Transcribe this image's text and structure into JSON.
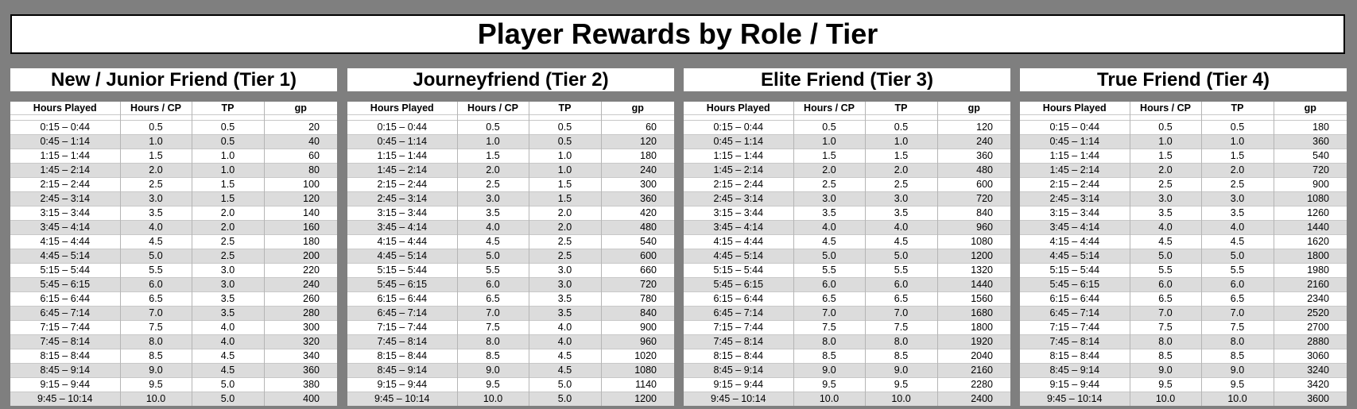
{
  "title": "Player Rewards by Role / Tier",
  "columns": [
    "Hours Played",
    "Hours / CP",
    "TP",
    "gp"
  ],
  "hours_played": [
    "0:15 – 0:44",
    "0:45 – 1:14",
    "1:15 – 1:44",
    "1:45 – 2:14",
    "2:15 – 2:44",
    "2:45 – 3:14",
    "3:15 – 3:44",
    "3:45 – 4:14",
    "4:15 – 4:44",
    "4:45 – 5:14",
    "5:15 – 5:44",
    "5:45 – 6:15",
    "6:15 – 6:44",
    "6:45 – 7:14",
    "7:15 – 7:44",
    "7:45 – 8:14",
    "8:15 – 8:44",
    "8:45 – 9:14",
    "9:15 – 9:44",
    "9:45 – 10:14"
  ],
  "hours_cp": [
    "0.5",
    "1.0",
    "1.5",
    "2.0",
    "2.5",
    "3.0",
    "3.5",
    "4.0",
    "4.5",
    "5.0",
    "5.5",
    "6.0",
    "6.5",
    "7.0",
    "7.5",
    "8.0",
    "8.5",
    "9.0",
    "9.5",
    "10.0"
  ],
  "tiers": [
    {
      "name": "New / Junior Friend (Tier 1)",
      "tp": [
        "0.5",
        "0.5",
        "1.0",
        "1.0",
        "1.5",
        "1.5",
        "2.0",
        "2.0",
        "2.5",
        "2.5",
        "3.0",
        "3.0",
        "3.5",
        "3.5",
        "4.0",
        "4.0",
        "4.5",
        "4.5",
        "5.0",
        "5.0"
      ],
      "gp": [
        "20",
        "40",
        "60",
        "80",
        "100",
        "120",
        "140",
        "160",
        "180",
        "200",
        "220",
        "240",
        "260",
        "280",
        "300",
        "320",
        "340",
        "360",
        "380",
        "400"
      ]
    },
    {
      "name": "Journeyfriend (Tier 2)",
      "tp": [
        "0.5",
        "0.5",
        "1.0",
        "1.0",
        "1.5",
        "1.5",
        "2.0",
        "2.0",
        "2.5",
        "2.5",
        "3.0",
        "3.0",
        "3.5",
        "3.5",
        "4.0",
        "4.0",
        "4.5",
        "4.5",
        "5.0",
        "5.0"
      ],
      "gp": [
        "60",
        "120",
        "180",
        "240",
        "300",
        "360",
        "420",
        "480",
        "540",
        "600",
        "660",
        "720",
        "780",
        "840",
        "900",
        "960",
        "1020",
        "1080",
        "1140",
        "1200"
      ]
    },
    {
      "name": "Elite Friend (Tier 3)",
      "tp": [
        "0.5",
        "1.0",
        "1.5",
        "2.0",
        "2.5",
        "3.0",
        "3.5",
        "4.0",
        "4.5",
        "5.0",
        "5.5",
        "6.0",
        "6.5",
        "7.0",
        "7.5",
        "8.0",
        "8.5",
        "9.0",
        "9.5",
        "10.0"
      ],
      "gp": [
        "120",
        "240",
        "360",
        "480",
        "600",
        "720",
        "840",
        "960",
        "1080",
        "1200",
        "1320",
        "1440",
        "1560",
        "1680",
        "1800",
        "1920",
        "2040",
        "2160",
        "2280",
        "2400"
      ]
    },
    {
      "name": "True Friend (Tier 4)",
      "tp": [
        "0.5",
        "1.0",
        "1.5",
        "2.0",
        "2.5",
        "3.0",
        "3.5",
        "4.0",
        "4.5",
        "5.0",
        "5.5",
        "6.0",
        "6.5",
        "7.0",
        "7.5",
        "8.0",
        "8.5",
        "9.0",
        "9.5",
        "10.0"
      ],
      "gp": [
        "180",
        "360",
        "540",
        "720",
        "900",
        "1080",
        "1260",
        "1440",
        "1620",
        "1800",
        "1980",
        "2160",
        "2340",
        "2520",
        "2700",
        "2880",
        "3060",
        "3240",
        "3420",
        "3600"
      ]
    }
  ]
}
